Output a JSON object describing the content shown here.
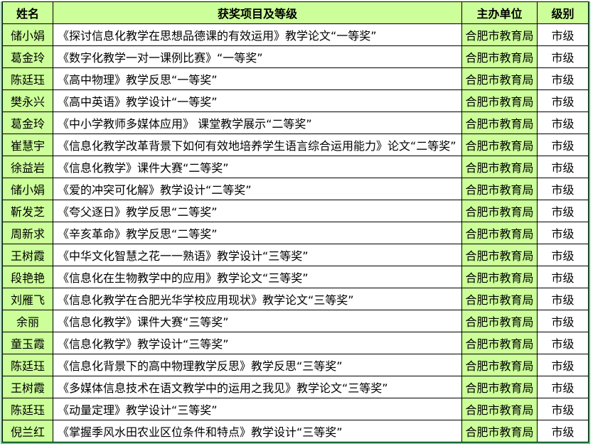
{
  "header": {
    "name": "姓名",
    "item": "获奖项目及等级",
    "unit": "主办单位",
    "level": "级别"
  },
  "rows": [
    {
      "name": "储小娟",
      "item": "《探讨信息化教学在思想品德课的有效运用》教学论文“一等奖”",
      "unit": "合肥市教育局",
      "level": "市级"
    },
    {
      "name": "葛金玲",
      "item": "《数字化教学一对一课例比赛》“一等奖”",
      "unit": "合肥市教育局",
      "level": "市级"
    },
    {
      "name": "陈廷珏",
      "item": "《高中物理》教学反思“一等奖”",
      "unit": "合肥市教育局",
      "level": "市级"
    },
    {
      "name": "樊永兴",
      "item": "《高中英语》教学设计“一等奖”",
      "unit": "合肥市教育局",
      "level": "市级"
    },
    {
      "name": "葛金玲",
      "item": "《中小学教师多媒体应用》 课堂教学展示“二等奖”",
      "unit": "合肥市教育局",
      "level": "市级"
    },
    {
      "name": "崔慧宇",
      "item": "《信息化教学改革背景下如何有效地培养学生语言综合运用能力》论文“二等奖”",
      "unit": "合肥市教育局",
      "level": "市级"
    },
    {
      "name": "徐益岩",
      "item": "《信息化教学》课件大赛“二等奖”",
      "unit": "合肥市教育局",
      "level": "市级"
    },
    {
      "name": "储小娟",
      "item": "《爱的冲突可化解》教学设计“二等奖”",
      "unit": "合肥市教育局",
      "level": "市级"
    },
    {
      "name": "靳发芝",
      "item": "《夸父逐日》教学反思“二等奖”",
      "unit": "合肥市教育局",
      "level": "市级"
    },
    {
      "name": "周新求",
      "item": "《辛亥革命》教学反思“二等奖”",
      "unit": "合肥市教育局",
      "level": "市级"
    },
    {
      "name": "王树霞",
      "item": "《中华文化智慧之花一一熟语》教学设计“三等奖”",
      "unit": "合肥市教育局",
      "level": "市级"
    },
    {
      "name": "段艳艳",
      "item": "《信息化在生物教学中的应用》教学论文“三等奖”",
      "unit": "合肥市教育局",
      "level": "市级"
    },
    {
      "name": "刘雁飞",
      "item": "《信息化教学在合肥光华学校应用现状》教学论文“三等奖”",
      "unit": "合肥市教育局",
      "level": "市级"
    },
    {
      "name": "余丽",
      "item": "《信息化教学》课件大赛“三等奖”",
      "unit": "合肥市教育局",
      "level": "市级"
    },
    {
      "name": "童玉霞",
      "item": "《信息化教学》教学设计“三等奖”",
      "unit": "合肥市教育局",
      "level": "市级"
    },
    {
      "name": "陈廷珏",
      "item": "《信息化背景下的高中物理教学反思》教学反思“三等奖”",
      "unit": "合肥市教育局",
      "level": "市级"
    },
    {
      "name": "王树霞",
      "item": "《多媒体信息技术在语文教学中的运用之我见》教学论文“三等奖”",
      "unit": "合肥市教育局",
      "level": "市级"
    },
    {
      "name": "陈廷珏",
      "item": "《动量定理》教学设计“三等奖”",
      "unit": "合肥市教育局",
      "level": "市级"
    },
    {
      "name": "倪兰红",
      "item": "《掌握季风水田农业区位条件和特点》教学设计“三等奖”",
      "unit": "合肥市教育局",
      "level": "市级"
    }
  ]
}
